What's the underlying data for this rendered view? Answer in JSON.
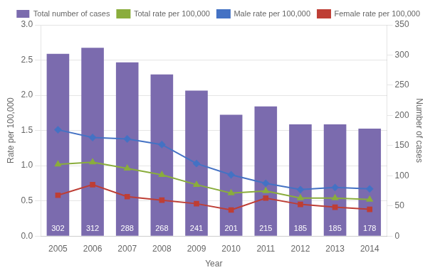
{
  "chart_data": {
    "type": "bar",
    "categories": [
      "2005",
      "2006",
      "2007",
      "2008",
      "2009",
      "2010",
      "2011",
      "2012",
      "2013",
      "2014"
    ],
    "series": [
      {
        "name": "Total number of cases",
        "type": "bar",
        "color": "#7B6BAE",
        "axis": "y2",
        "data_labels": true,
        "values": [
          302,
          312,
          288,
          268,
          241,
          201,
          215,
          185,
          185,
          178
        ]
      },
      {
        "name": "Total rate per 100,000",
        "type": "line",
        "color": "#8AAD3C",
        "marker": "triangle",
        "values": [
          1.02,
          1.05,
          0.96,
          0.87,
          0.73,
          0.61,
          0.64,
          0.54,
          0.54,
          0.52
        ]
      },
      {
        "name": "Male rate per 100,000",
        "type": "line",
        "color": "#4472C4",
        "marker": "diamond",
        "values": [
          1.51,
          1.4,
          1.38,
          1.3,
          1.03,
          0.87,
          0.75,
          0.66,
          0.69,
          0.67
        ]
      },
      {
        "name": "Female rate per 100,000",
        "type": "line",
        "color": "#BE3E35",
        "marker": "square",
        "values": [
          0.58,
          0.73,
          0.56,
          0.51,
          0.46,
          0.37,
          0.54,
          0.45,
          0.41,
          0.38
        ]
      }
    ],
    "xlabel": "Year",
    "ylabel": "Rate per 100,000",
    "y2label": "Number of cases",
    "ylim": [
      0.0,
      3.0
    ],
    "yticks": [
      {
        "value": 0,
        "label": "0.0"
      },
      0.5,
      {
        "value": 1,
        "label": "1.0"
      },
      1.5,
      {
        "value": 2,
        "label": "2.0"
      },
      2.5,
      {
        "value": 3,
        "label": "3.0"
      }
    ],
    "y2lim": [
      0,
      350
    ],
    "y2ticks": [
      0,
      50,
      100,
      150,
      200,
      250,
      300,
      350
    ],
    "grid": true,
    "legend": "upper right"
  }
}
